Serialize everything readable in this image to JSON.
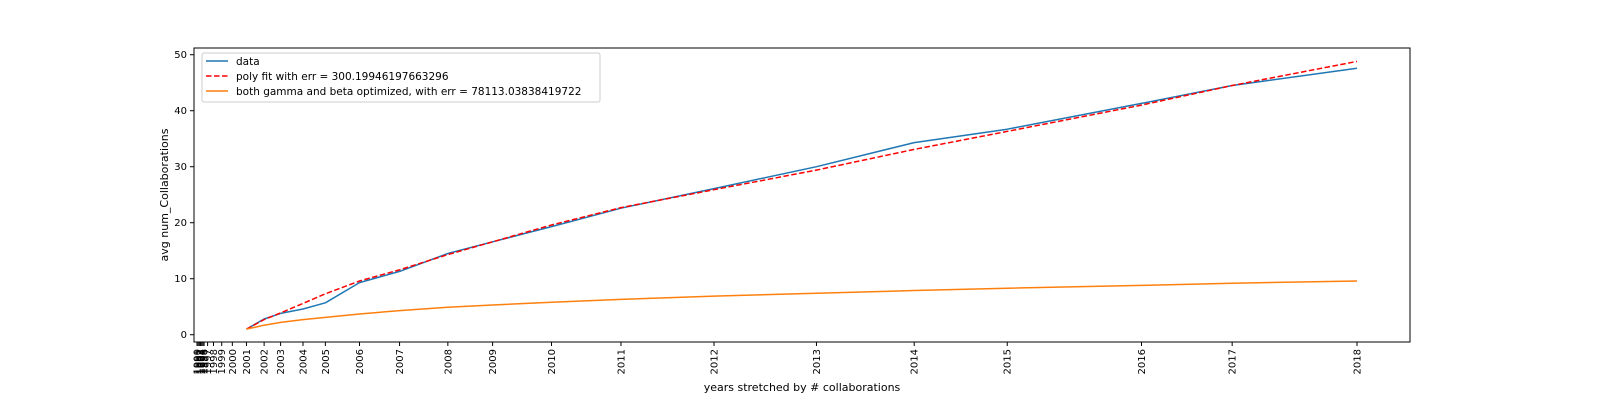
{
  "chart_data": {
    "type": "line",
    "xlabel": "years stretched by # collaborations",
    "ylabel": "avg num_Collaborations",
    "ylim": [
      -1.3,
      51.2
    ],
    "yticks": [
      0,
      10,
      20,
      30,
      40,
      50
    ],
    "grid": false,
    "legend": "top-left",
    "x_tick_labels": [
      "1990",
      "1991",
      "1992",
      "1993",
      "1994",
      "1995",
      "1996",
      "1997",
      "1998",
      "1999",
      "2000",
      "2001",
      "2002",
      "2003",
      "2004",
      "2005",
      "2006",
      "2007",
      "2008",
      "2009",
      "2010",
      "2011",
      "2012",
      "2013",
      "2014",
      "2015",
      "2016",
      "2017",
      "2018"
    ],
    "x_tick_positions": [
      0,
      1,
      2,
      3,
      4,
      5,
      6,
      9,
      14,
      21,
      30,
      42,
      57,
      71,
      90,
      109,
      138,
      172,
      213,
      251,
      301,
      360,
      439,
      526,
      609,
      688,
      802,
      879,
      985
    ],
    "series": [
      {
        "name": "data",
        "color": "#1f77b4",
        "dash": "solid",
        "x": [
          42,
          57,
          71,
          90,
          109,
          138,
          172,
          213,
          251,
          301,
          360,
          439,
          526,
          609,
          688,
          802,
          879,
          985
        ],
        "y": [
          1.0,
          2.8,
          3.8,
          4.6,
          5.7,
          9.3,
          11.3,
          14.5,
          16.6,
          19.3,
          22.6,
          26.1,
          30.0,
          34.3,
          36.7,
          41.3,
          44.5,
          47.6
        ]
      },
      {
        "name": "poly fit with err = 300.19946197663296",
        "color": "#ff0000",
        "dash": "dashed",
        "x": [
          42,
          57,
          71,
          90,
          109,
          138,
          172,
          213,
          251,
          301,
          360,
          439,
          526,
          609,
          688,
          802,
          879,
          985
        ],
        "y": [
          1.0,
          2.7,
          3.9,
          5.6,
          7.3,
          9.6,
          11.6,
          14.3,
          16.6,
          19.6,
          22.7,
          25.9,
          29.4,
          33.1,
          36.3,
          41.0,
          44.5,
          48.8
        ]
      },
      {
        "name": "both gamma and beta optimized, with err = 78113.03838419722",
        "color": "#ff7f0e",
        "dash": "solid",
        "x": [
          42,
          57,
          71,
          90,
          109,
          138,
          172,
          213,
          251,
          301,
          360,
          439,
          526,
          609,
          688,
          802,
          879,
          985
        ],
        "y": [
          1.0,
          1.7,
          2.2,
          2.7,
          3.1,
          3.7,
          4.3,
          4.9,
          5.3,
          5.8,
          6.3,
          6.9,
          7.4,
          7.9,
          8.3,
          8.8,
          9.2,
          9.6
        ]
      }
    ]
  }
}
